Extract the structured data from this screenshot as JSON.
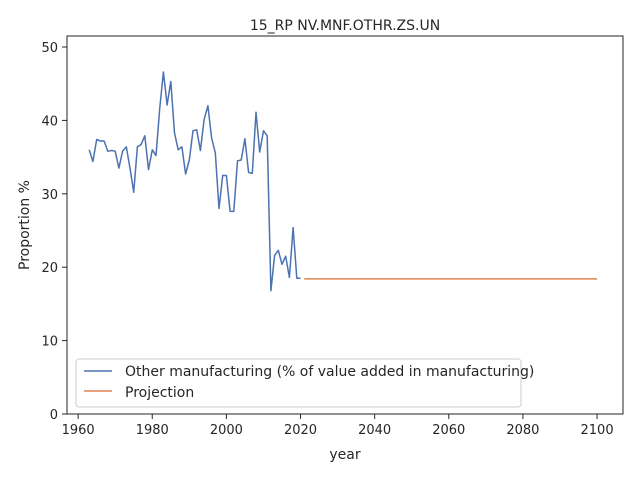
{
  "chart_data": {
    "type": "line",
    "title": "15_RP NV.MNF.OTHR.ZS.UN",
    "xlabel": "year",
    "ylabel": "Proportion %",
    "xlim": [
      1957,
      2107
    ],
    "ylim": [
      0,
      51.5
    ],
    "xticks": [
      1960,
      1980,
      2000,
      2020,
      2040,
      2060,
      2080,
      2100
    ],
    "yticks": [
      0,
      10,
      20,
      30,
      40,
      50
    ],
    "grid": false,
    "legend_position": "lower-left",
    "series": [
      {
        "name": "Other manufacturing (% of value added in manufacturing)",
        "color": "#4c72b0",
        "x": [
          1963,
          1964,
          1965,
          1966,
          1967,
          1968,
          1969,
          1970,
          1971,
          1972,
          1973,
          1974,
          1975,
          1976,
          1977,
          1978,
          1979,
          1980,
          1981,
          1982,
          1983,
          1984,
          1985,
          1986,
          1987,
          1988,
          1989,
          1990,
          1991,
          1992,
          1993,
          1994,
          1995,
          1996,
          1997,
          1998,
          1999,
          2000,
          2001,
          2002,
          2003,
          2004,
          2005,
          2006,
          2007,
          2008,
          2009,
          2010,
          2011,
          2012,
          2013,
          2014,
          2015,
          2016,
          2017,
          2018,
          2019,
          2020
        ],
        "y": [
          36.0,
          34.4,
          37.4,
          37.2,
          37.2,
          35.8,
          35.9,
          35.8,
          33.5,
          35.8,
          36.4,
          33.5,
          30.2,
          36.4,
          36.7,
          37.9,
          33.3,
          36.0,
          35.2,
          41.6,
          46.6,
          42.1,
          45.3,
          38.3,
          36.0,
          36.4,
          32.7,
          34.6,
          38.6,
          38.7,
          35.9,
          40.1,
          42.0,
          37.6,
          35.6,
          28.0,
          32.5,
          32.5,
          27.6,
          27.6,
          34.5,
          34.6,
          37.5,
          32.9,
          32.8,
          41.1,
          35.7,
          38.6,
          37.9,
          16.8,
          21.6,
          22.3,
          20.4,
          21.5,
          18.6,
          25.4,
          18.5,
          18.5
        ]
      },
      {
        "name": "Projection",
        "color": "#dd8452",
        "x": [
          2021,
          2100
        ],
        "y": [
          18.4,
          18.4
        ]
      }
    ]
  }
}
